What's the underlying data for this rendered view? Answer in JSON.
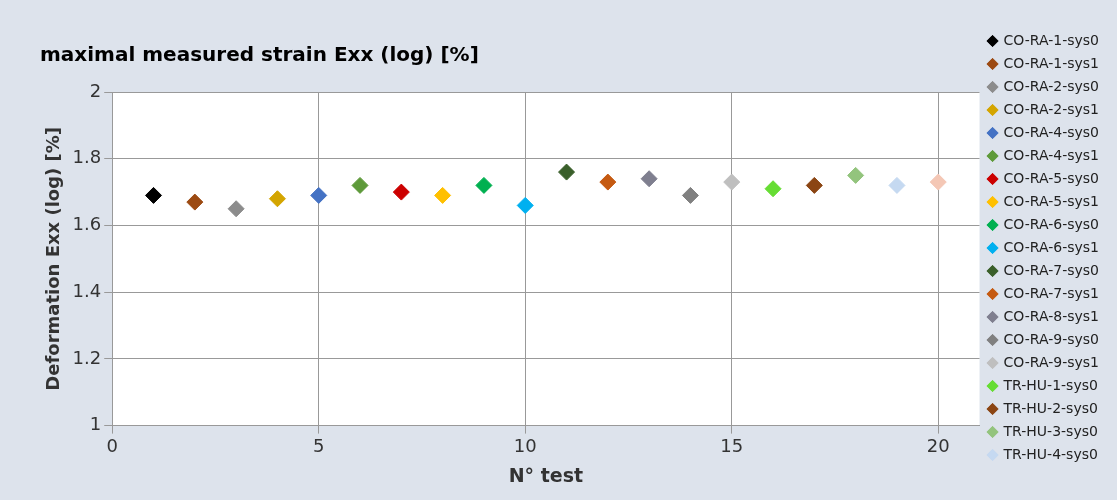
{
  "chart_data": {
    "type": "scatter",
    "title": "maximal measured strain Exx (log) [%]",
    "xlabel": "N° test",
    "ylabel": "Deformation Exx (log) [%]",
    "xlim": [
      0,
      21
    ],
    "xticks": [
      0,
      5,
      10,
      15,
      20
    ],
    "ylim": [
      1,
      2
    ],
    "yticks": [
      1,
      1.2,
      1.4,
      1.6,
      1.8,
      2
    ],
    "grid": true,
    "legend": "right",
    "marker": "diamond",
    "series": [
      {
        "name": "CO-RA-1-sys0",
        "color": "#000000",
        "x": [
          1
        ],
        "values": [
          1.69
        ]
      },
      {
        "name": "CO-RA-1-sys1",
        "color": "#9c4a12",
        "x": [
          2
        ],
        "values": [
          1.67
        ]
      },
      {
        "name": "CO-RA-2-sys0",
        "color": "#8c8c8c",
        "x": [
          3
        ],
        "values": [
          1.65
        ]
      },
      {
        "name": "CO-RA-2-sys1",
        "color": "#d4a500",
        "x": [
          4
        ],
        "values": [
          1.68
        ]
      },
      {
        "name": "CO-RA-4-sys0",
        "color": "#4472c4",
        "x": [
          5
        ],
        "values": [
          1.69
        ]
      },
      {
        "name": "CO-RA-4-sys1",
        "color": "#5e9a3a",
        "x": [
          6
        ],
        "values": [
          1.72
        ]
      },
      {
        "name": "CO-RA-5-sys0",
        "color": "#cc0000",
        "x": [
          7
        ],
        "values": [
          1.7
        ]
      },
      {
        "name": "CO-RA-5-sys1",
        "color": "#ffc000",
        "x": [
          8
        ],
        "values": [
          1.69
        ]
      },
      {
        "name": "CO-RA-6-sys0",
        "color": "#00b050",
        "x": [
          9
        ],
        "values": [
          1.72
        ]
      },
      {
        "name": "CO-RA-6-sys1",
        "color": "#00b0f0",
        "x": [
          10
        ],
        "values": [
          1.66
        ]
      },
      {
        "name": "CO-RA-7-sys0",
        "color": "#3a5f2a",
        "x": [
          11
        ],
        "values": [
          1.76
        ]
      },
      {
        "name": "CO-RA-7-sys1",
        "color": "#c55a11",
        "x": [
          12
        ],
        "values": [
          1.73
        ]
      },
      {
        "name": "CO-RA-8-sys1",
        "color": "#7f7f8f",
        "x": [
          13
        ],
        "values": [
          1.74
        ]
      },
      {
        "name": "CO-RA-9-sys0",
        "color": "#808080",
        "x": [
          14
        ],
        "values": [
          1.69
        ]
      },
      {
        "name": "CO-RA-9-sys1",
        "color": "#bfbfbf",
        "x": [
          15
        ],
        "values": [
          1.73
        ]
      },
      {
        "name": "TR-HU-1-sys0",
        "color": "#66dd33",
        "x": [
          16
        ],
        "values": [
          1.71
        ]
      },
      {
        "name": "TR-HU-2-sys0",
        "color": "#8b4513",
        "x": [
          17
        ],
        "values": [
          1.72
        ]
      },
      {
        "name": "TR-HU-3-sys0",
        "color": "#93c47d",
        "x": [
          18
        ],
        "values": [
          1.75
        ]
      },
      {
        "name": "TR-HU-4-sys0",
        "color": "#c5d9f1",
        "x": [
          19
        ],
        "values": [
          1.72
        ]
      },
      {
        "color": "#f4c7b5",
        "x": [
          20
        ],
        "values": [
          1.73
        ]
      }
    ]
  }
}
